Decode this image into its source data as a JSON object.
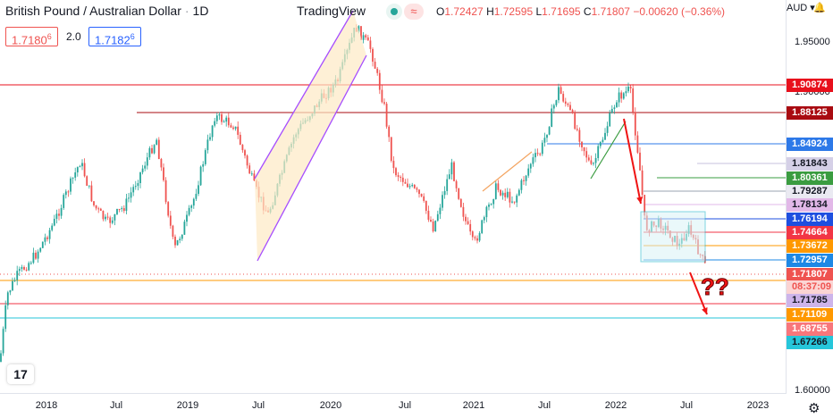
{
  "header": {
    "symbol": "British Pound / Australian Dollar",
    "interval": "1D",
    "brand": "TradingView",
    "toggle_icon": "≈",
    "ohlc": {
      "o_label": "O",
      "o": "1.72427",
      "h_label": "H",
      "h": "1.72595",
      "l_label": "L",
      "l": "1.71695",
      "c_label": "C",
      "c": "1.71807",
      "change": "−0.00620 (−0.36%)"
    }
  },
  "order": {
    "sell_price": "1.7180",
    "sell_sup": "6",
    "spread": "2.0",
    "buy_price": "1.7182",
    "buy_sup": "6"
  },
  "axis": {
    "currency": "AUD",
    "y_ticks": [
      "1.95000",
      "1.90000",
      "1.60000"
    ],
    "x_ticks": [
      "2018",
      "Jul",
      "2019",
      "Jul",
      "2020",
      "Jul",
      "2021",
      "Jul",
      "2022",
      "Jul",
      "2023"
    ]
  },
  "price_labels": [
    {
      "text": "1.90874",
      "bg": "#e8101c",
      "fg": "#ffffff"
    },
    {
      "text": "1.88125",
      "bg": "#a90b11",
      "fg": "#ffffff"
    },
    {
      "text": "1.84924",
      "bg": "#2d79e8",
      "fg": "#ffffff"
    },
    {
      "text": "1.81843",
      "bg": "#d5d0e7",
      "fg": "#131722"
    },
    {
      "text": "1.80361",
      "bg": "#3a9c40",
      "fg": "#ffffff"
    },
    {
      "text": "1.79287",
      "bg": "#eaeaf2",
      "fg": "#131722"
    },
    {
      "text": "1.78134",
      "bg": "#e2b8e8",
      "fg": "#131722"
    },
    {
      "text": "1.76194",
      "bg": "#1e4fe0",
      "fg": "#ffffff"
    },
    {
      "text": "1.74664",
      "bg": "#f23645",
      "fg": "#ffffff"
    },
    {
      "text": "1.73672",
      "bg": "#ff9800",
      "fg": "#ffffff"
    },
    {
      "text": "1.72957",
      "bg": "#1e88e5",
      "fg": "#ffffff"
    },
    {
      "text": "1.71807",
      "bg": "#ef5350",
      "fg": "#ffffff"
    },
    {
      "text": "08:37:09",
      "bg": "#fbd4d3",
      "fg": "#ef5350"
    },
    {
      "text": "1.71785",
      "bg": "#cdb4ea",
      "fg": "#131722"
    },
    {
      "text": "1.71109",
      "bg": "#ff9800",
      "fg": "#ffffff"
    },
    {
      "text": "1.68755",
      "bg": "#f8767b",
      "fg": "#ffffff"
    },
    {
      "text": "1.67266",
      "bg": "#26c6da",
      "fg": "#131722"
    }
  ],
  "annotation": {
    "text": "??"
  },
  "logo": {
    "text": "17"
  },
  "colors": {
    "up": "#26a69a",
    "down": "#ef5350",
    "channel": "#a64dff",
    "channel_fill": "#fde9c4",
    "box": "#17b3c7"
  }
}
